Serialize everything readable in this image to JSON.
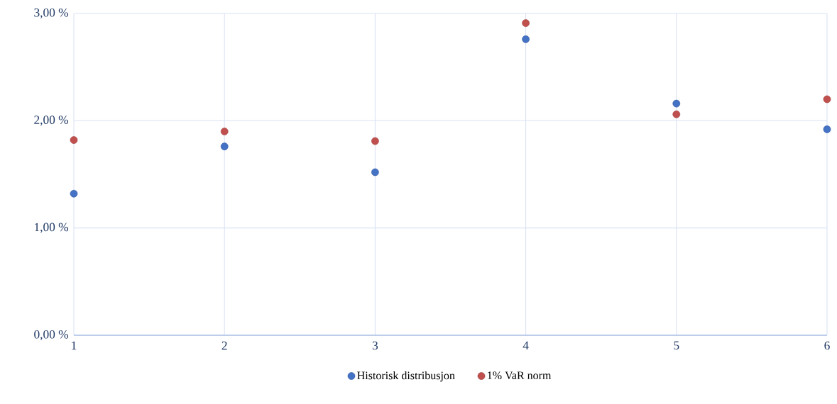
{
  "chart_data": {
    "type": "scatter",
    "x": [
      1,
      2,
      3,
      4,
      5,
      6
    ],
    "series": [
      {
        "name": "Historisk distribusjon",
        "color": "#4472c4",
        "values": [
          1.32,
          1.76,
          1.52,
          2.76,
          2.16,
          1.92
        ]
      },
      {
        "name": "1% VaR norm",
        "color": "#c0504d",
        "values": [
          1.82,
          1.9,
          1.81,
          2.91,
          2.06,
          2.2
        ]
      }
    ],
    "xlim": [
      1,
      6
    ],
    "xticks": [
      1,
      2,
      3,
      4,
      5,
      6
    ],
    "ylim": [
      0,
      3
    ],
    "yticks": [
      {
        "value": 0,
        "label": "0,00 %"
      },
      {
        "value": 1,
        "label": "1,00 %"
      },
      {
        "value": 2,
        "label": "2,00 %"
      },
      {
        "value": 3,
        "label": "3,00 %"
      }
    ],
    "grid": true,
    "legend": "bottom",
    "marker": "circle"
  }
}
